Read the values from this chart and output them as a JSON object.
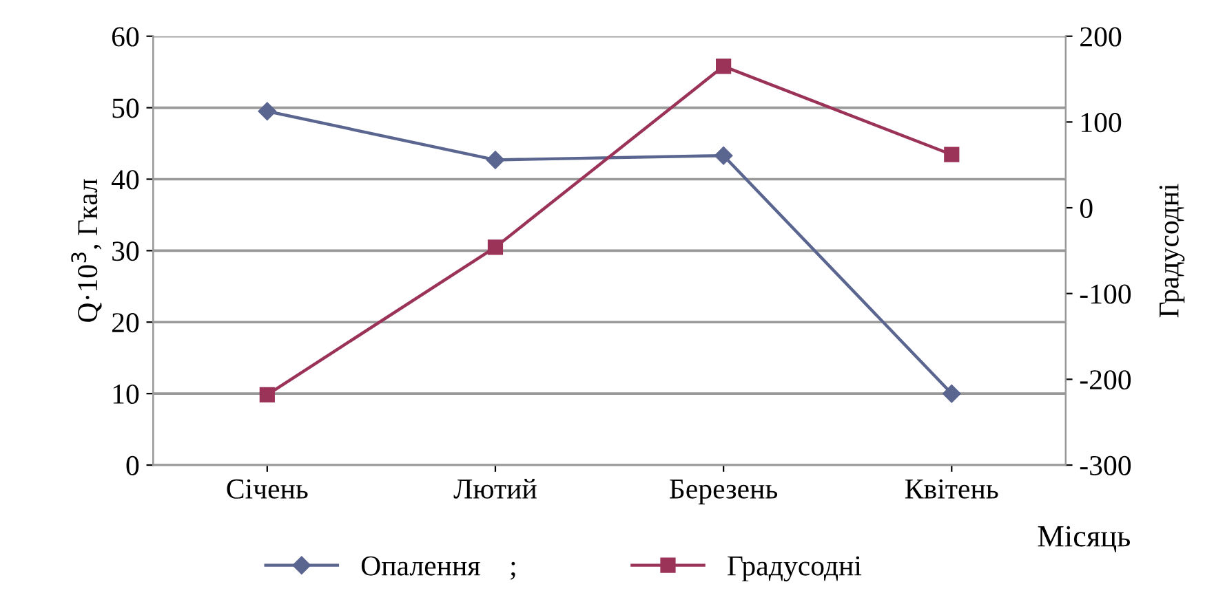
{
  "chart_data": {
    "type": "line",
    "categories": [
      "Січень",
      "Лютий",
      "Березень",
      "Квітень"
    ],
    "xlabel": "Місяць",
    "ylabel": "Q·10$^{3}$, Гкал",
    "y2label": "Градусодні",
    "series": [
      {
        "name": "Опалення    ;",
        "color": "#5a6590",
        "marker": "diamond",
        "values": [
          49.5,
          42.7,
          43.3,
          10
        ]
      },
      {
        "name": "Градусодні",
        "color": "#9b3358",
        "marker": "square",
        "axis": "y2",
        "values": [
          -218,
          -46,
          165,
          62
        ]
      }
    ],
    "ylim": [
      0,
      60
    ],
    "yticks": [
      0,
      10,
      20,
      30,
      40,
      50,
      60
    ],
    "y2lim": [
      -300,
      200
    ],
    "y2ticks": [
      -300,
      -200,
      -100,
      0,
      100,
      200
    ],
    "grid": "y",
    "legend": "bottom"
  }
}
